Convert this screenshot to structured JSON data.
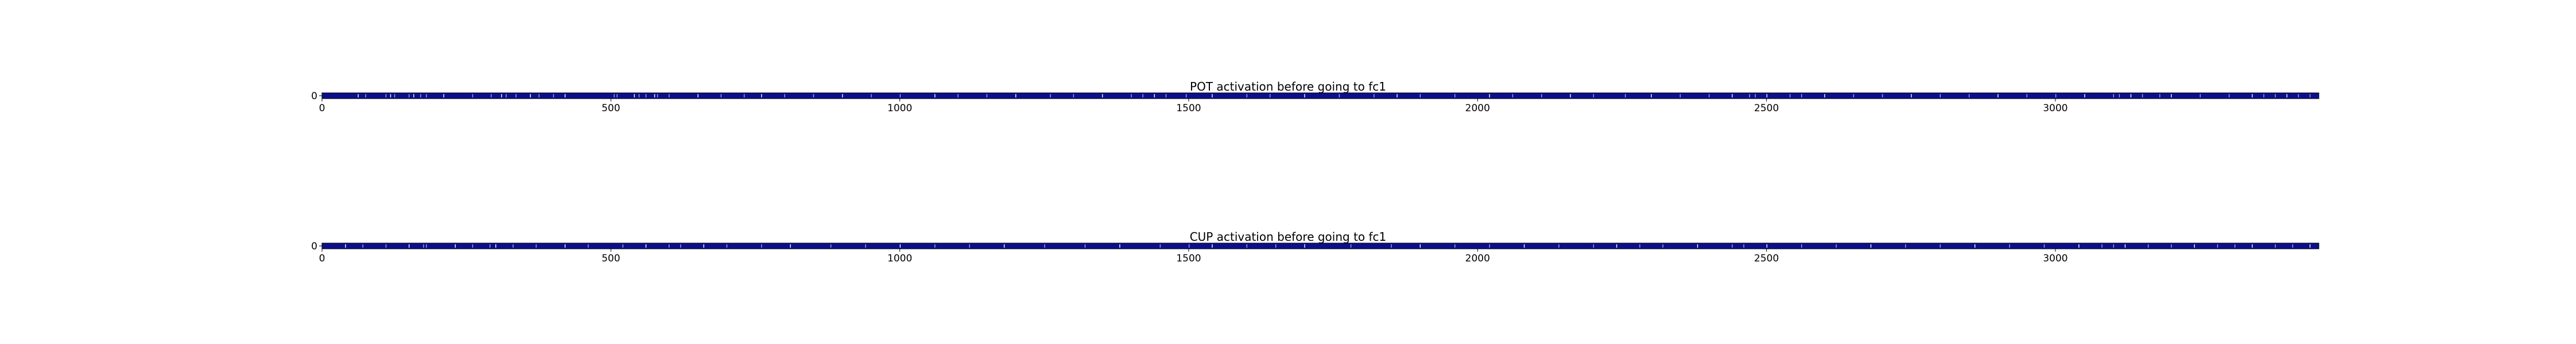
{
  "chart_data": [
    {
      "type": "heatmap",
      "title": "POT activation before going to fc1",
      "xlabel": "",
      "ylabel": "",
      "xlim": [
        0,
        3456
      ],
      "ylim": [
        0,
        1
      ],
      "xticks": [
        0,
        500,
        1000,
        1500,
        2000,
        2500,
        3000
      ],
      "yticks": [
        0
      ],
      "grid": false,
      "colormap": {
        "low": "#0b0f8c",
        "high": "#ffffff"
      },
      "rows": 1,
      "columns": 3456,
      "bright_columns": [
        62,
        75,
        110,
        118,
        125,
        150,
        158,
        170,
        180,
        210,
        260,
        292,
        310,
        318,
        335,
        360,
        375,
        400,
        420,
        505,
        510,
        540,
        548,
        560,
        575,
        580,
        600,
        650,
        690,
        730,
        760,
        800,
        850,
        900,
        950,
        1000,
        1060,
        1100,
        1150,
        1200,
        1260,
        1300,
        1350,
        1400,
        1420,
        1440,
        1460,
        1495,
        1540,
        1600,
        1640,
        1700,
        1760,
        1820,
        1860,
        1900,
        1960,
        2020,
        2060,
        2110,
        2160,
        2200,
        2255,
        2300,
        2350,
        2400,
        2440,
        2470,
        2480,
        2500,
        2540,
        2560,
        2600,
        2650,
        2700,
        2750,
        2800,
        2850,
        2900,
        2950,
        3000,
        3050,
        3100,
        3110,
        3130,
        3150,
        3180,
        3200,
        3250,
        3300,
        3340,
        3360,
        3380,
        3400,
        3420,
        3440
      ]
    },
    {
      "type": "heatmap",
      "title": "CUP activation before going to fc1",
      "xlabel": "",
      "ylabel": "",
      "xlim": [
        0,
        3456
      ],
      "ylim": [
        0,
        1
      ],
      "xticks": [
        0,
        500,
        1000,
        1500,
        2000,
        2500,
        3000
      ],
      "yticks": [
        0
      ],
      "grid": false,
      "colormap": {
        "low": "#0b0f8c",
        "high": "#ffffff"
      },
      "rows": 1,
      "columns": 3456,
      "bright_columns": [
        40,
        70,
        110,
        150,
        175,
        180,
        230,
        260,
        290,
        300,
        330,
        370,
        420,
        460,
        520,
        560,
        600,
        620,
        660,
        700,
        760,
        810,
        880,
        940,
        1000,
        1060,
        1120,
        1180,
        1250,
        1320,
        1380,
        1450,
        1500,
        1540,
        1600,
        1650,
        1700,
        1780,
        1850,
        1900,
        1960,
        2020,
        2080,
        2140,
        2200,
        2240,
        2280,
        2320,
        2380,
        2440,
        2460,
        2500,
        2560,
        2620,
        2680,
        2740,
        2800,
        2860,
        2920,
        2980,
        3040,
        3080,
        3100,
        3120,
        3160,
        3200,
        3240,
        3280,
        3310,
        3340,
        3380,
        3410,
        3440
      ]
    }
  ]
}
